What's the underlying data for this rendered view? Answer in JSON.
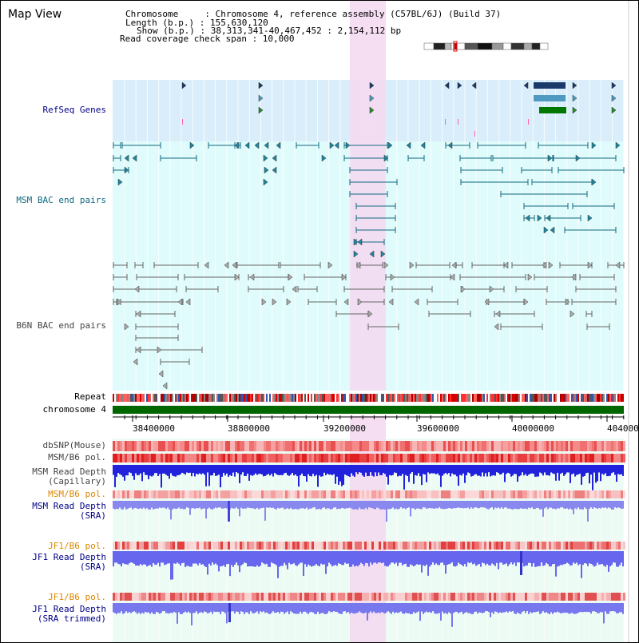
{
  "title": "Map View",
  "info": {
    "chromosome": "Chromosome     : Chromosome 4, reference assembly (C57BL/6J) (Build 37)",
    "length": "Length (b.p.) : 155,630,120",
    "show": "Show (b.p.) : 38,313,341-40,467,452 : 2,154,112 bp",
    "coverage": "Read coverage check span : 10,000"
  },
  "labels": {
    "refseq": "RefSeq Genes",
    "msm_bac": "MSM BAC end pairs",
    "b6n_bac": "B6N BAC end pairs",
    "repeat": "Repeat",
    "chromosome": "chromosome 4",
    "dbsnp": "dbSNP(Mouse)",
    "msm_b6_pol_1": "MSM/B6 pol.",
    "msm_depth_cap": "MSM Read Depth",
    "msm_depth_cap_sub": "(Capillary)",
    "msm_b6_pol_2": "MSM/B6 pol.",
    "msm_depth_sra": "MSM Read Depth",
    "msm_depth_sra_sub": "(SRA)",
    "jf1_b6_pol_1": "JF1/B6 pol.",
    "jf1_depth_sra": "JF1 Read Depth",
    "jf1_depth_sra_sub": "(SRA)",
    "jf1_b6_pol_2": "JF1/B6 pol.",
    "jf1_depth_trim": "JF1 Read Depth",
    "jf1_depth_trim_sub": "(SRA trimmed)"
  },
  "ruler": {
    "ticks": [
      "38400000",
      "38800000",
      "39200000",
      "39600000",
      "40000000",
      "404000"
    ]
  },
  "colors": {
    "refseq_bg": "#d9eefa",
    "bac_bg": "#e0fbfb",
    "lower_bg": "#ecfbf4",
    "highlight": "#f5d8f0",
    "msm_line": "#116a80",
    "b6n_line": "#666666",
    "chrom": "#006600",
    "label_navy": "#000088",
    "label_orange": "#dd8800",
    "label_gray": "#444444"
  }
}
